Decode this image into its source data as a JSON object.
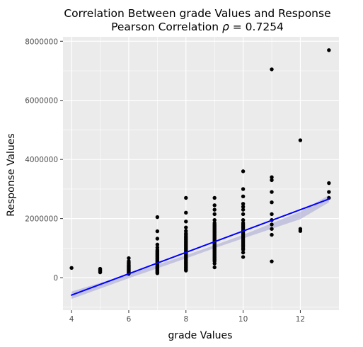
{
  "chart_data": {
    "type": "scatter",
    "title": "Correlation Between grade Values and Response",
    "subtitle_prefix": "Pearson Correlation ",
    "subtitle_symbol": "ρ",
    "subtitle_suffix": " = 0.7254",
    "xlabel": "grade Values",
    "ylabel": "Response Values",
    "xlim": [
      3.7,
      13.35
    ],
    "ylim": [
      -1100000,
      8150000
    ],
    "x_ticks": [
      4,
      6,
      8,
      10,
      12
    ],
    "x_tick_labels": [
      "4",
      "6",
      "8",
      "10",
      "12"
    ],
    "y_ticks": [
      0,
      2000000,
      4000000,
      6000000,
      8000000
    ],
    "y_tick_labels": [
      "0",
      "2000000",
      "4000000",
      "6000000",
      "8000000"
    ],
    "grid": true,
    "colors": {
      "panel_bg": "#ebebeb",
      "grid": "#ffffff",
      "points": "#000000",
      "fit_line": "#0000ff",
      "ci_band": "#b3b3d9"
    },
    "series": [
      {
        "values": [
          {
            "x": 4,
            "y": 330000
          },
          {
            "x": 5,
            "y": 180000
          },
          {
            "x": 5,
            "y": 210000
          },
          {
            "x": 5,
            "y": 240000
          },
          {
            "x": 5,
            "y": 270000
          },
          {
            "x": 5,
            "y": 300000
          },
          {
            "x": 6,
            "y": 130000
          },
          {
            "x": 6,
            "y": 150000
          },
          {
            "x": 6,
            "y": 170000
          },
          {
            "x": 6,
            "y": 190000
          },
          {
            "x": 6,
            "y": 210000
          },
          {
            "x": 6,
            "y": 230000
          },
          {
            "x": 6,
            "y": 250000
          },
          {
            "x": 6,
            "y": 270000
          },
          {
            "x": 6,
            "y": 290000
          },
          {
            "x": 6,
            "y": 310000
          },
          {
            "x": 6,
            "y": 330000
          },
          {
            "x": 6,
            "y": 350000
          },
          {
            "x": 6,
            "y": 370000
          },
          {
            "x": 6,
            "y": 390000
          },
          {
            "x": 6,
            "y": 410000
          },
          {
            "x": 6,
            "y": 430000
          },
          {
            "x": 6,
            "y": 460000
          },
          {
            "x": 6,
            "y": 490000
          },
          {
            "x": 6,
            "y": 520000
          },
          {
            "x": 6,
            "y": 560000
          },
          {
            "x": 6,
            "y": 660000
          },
          {
            "x": 7,
            "y": 150000
          },
          {
            "x": 7,
            "y": 180000
          },
          {
            "x": 7,
            "y": 210000
          },
          {
            "x": 7,
            "y": 240000
          },
          {
            "x": 7,
            "y": 270000
          },
          {
            "x": 7,
            "y": 300000
          },
          {
            "x": 7,
            "y": 330000
          },
          {
            "x": 7,
            "y": 360000
          },
          {
            "x": 7,
            "y": 390000
          },
          {
            "x": 7,
            "y": 420000
          },
          {
            "x": 7,
            "y": 450000
          },
          {
            "x": 7,
            "y": 480000
          },
          {
            "x": 7,
            "y": 510000
          },
          {
            "x": 7,
            "y": 540000
          },
          {
            "x": 7,
            "y": 570000
          },
          {
            "x": 7,
            "y": 600000
          },
          {
            "x": 7,
            "y": 630000
          },
          {
            "x": 7,
            "y": 660000
          },
          {
            "x": 7,
            "y": 690000
          },
          {
            "x": 7,
            "y": 720000
          },
          {
            "x": 7,
            "y": 750000
          },
          {
            "x": 7,
            "y": 780000
          },
          {
            "x": 7,
            "y": 810000
          },
          {
            "x": 7,
            "y": 840000
          },
          {
            "x": 7,
            "y": 870000
          },
          {
            "x": 7,
            "y": 900000
          },
          {
            "x": 7,
            "y": 940000
          },
          {
            "x": 7,
            "y": 1020000
          },
          {
            "x": 7,
            "y": 1120000
          },
          {
            "x": 7,
            "y": 1320000
          },
          {
            "x": 7,
            "y": 1570000
          },
          {
            "x": 7,
            "y": 2050000
          },
          {
            "x": 8,
            "y": 240000
          },
          {
            "x": 8,
            "y": 280000
          },
          {
            "x": 8,
            "y": 320000
          },
          {
            "x": 8,
            "y": 360000
          },
          {
            "x": 8,
            "y": 400000
          },
          {
            "x": 8,
            "y": 440000
          },
          {
            "x": 8,
            "y": 480000
          },
          {
            "x": 8,
            "y": 520000
          },
          {
            "x": 8,
            "y": 560000
          },
          {
            "x": 8,
            "y": 600000
          },
          {
            "x": 8,
            "y": 640000
          },
          {
            "x": 8,
            "y": 680000
          },
          {
            "x": 8,
            "y": 720000
          },
          {
            "x": 8,
            "y": 760000
          },
          {
            "x": 8,
            "y": 800000
          },
          {
            "x": 8,
            "y": 840000
          },
          {
            "x": 8,
            "y": 880000
          },
          {
            "x": 8,
            "y": 920000
          },
          {
            "x": 8,
            "y": 960000
          },
          {
            "x": 8,
            "y": 1000000
          },
          {
            "x": 8,
            "y": 1040000
          },
          {
            "x": 8,
            "y": 1080000
          },
          {
            "x": 8,
            "y": 1120000
          },
          {
            "x": 8,
            "y": 1160000
          },
          {
            "x": 8,
            "y": 1200000
          },
          {
            "x": 8,
            "y": 1240000
          },
          {
            "x": 8,
            "y": 1280000
          },
          {
            "x": 8,
            "y": 1320000
          },
          {
            "x": 8,
            "y": 1360000
          },
          {
            "x": 8,
            "y": 1400000
          },
          {
            "x": 8,
            "y": 1450000
          },
          {
            "x": 8,
            "y": 1500000
          },
          {
            "x": 8,
            "y": 1580000
          },
          {
            "x": 8,
            "y": 1700000
          },
          {
            "x": 8,
            "y": 1900000
          },
          {
            "x": 8,
            "y": 2200000
          },
          {
            "x": 8,
            "y": 2700000
          },
          {
            "x": 9,
            "y": 350000
          },
          {
            "x": 9,
            "y": 480000
          },
          {
            "x": 9,
            "y": 560000
          },
          {
            "x": 9,
            "y": 600000
          },
          {
            "x": 9,
            "y": 640000
          },
          {
            "x": 9,
            "y": 680000
          },
          {
            "x": 9,
            "y": 720000
          },
          {
            "x": 9,
            "y": 760000
          },
          {
            "x": 9,
            "y": 800000
          },
          {
            "x": 9,
            "y": 840000
          },
          {
            "x": 9,
            "y": 880000
          },
          {
            "x": 9,
            "y": 920000
          },
          {
            "x": 9,
            "y": 960000
          },
          {
            "x": 9,
            "y": 1000000
          },
          {
            "x": 9,
            "y": 1040000
          },
          {
            "x": 9,
            "y": 1080000
          },
          {
            "x": 9,
            "y": 1120000
          },
          {
            "x": 9,
            "y": 1160000
          },
          {
            "x": 9,
            "y": 1200000
          },
          {
            "x": 9,
            "y": 1240000
          },
          {
            "x": 9,
            "y": 1280000
          },
          {
            "x": 9,
            "y": 1320000
          },
          {
            "x": 9,
            "y": 1360000
          },
          {
            "x": 9,
            "y": 1400000
          },
          {
            "x": 9,
            "y": 1440000
          },
          {
            "x": 9,
            "y": 1480000
          },
          {
            "x": 9,
            "y": 1520000
          },
          {
            "x": 9,
            "y": 1560000
          },
          {
            "x": 9,
            "y": 1600000
          },
          {
            "x": 9,
            "y": 1640000
          },
          {
            "x": 9,
            "y": 1680000
          },
          {
            "x": 9,
            "y": 1720000
          },
          {
            "x": 9,
            "y": 1760000
          },
          {
            "x": 9,
            "y": 1800000
          },
          {
            "x": 9,
            "y": 1850000
          },
          {
            "x": 9,
            "y": 1950000
          },
          {
            "x": 9,
            "y": 2150000
          },
          {
            "x": 9,
            "y": 2300000
          },
          {
            "x": 9,
            "y": 2450000
          },
          {
            "x": 9,
            "y": 2700000
          },
          {
            "x": 10,
            "y": 700000
          },
          {
            "x": 10,
            "y": 850000
          },
          {
            "x": 10,
            "y": 950000
          },
          {
            "x": 10,
            "y": 1000000
          },
          {
            "x": 10,
            "y": 1050000
          },
          {
            "x": 10,
            "y": 1100000
          },
          {
            "x": 10,
            "y": 1150000
          },
          {
            "x": 10,
            "y": 1200000
          },
          {
            "x": 10,
            "y": 1250000
          },
          {
            "x": 10,
            "y": 1300000
          },
          {
            "x": 10,
            "y": 1350000
          },
          {
            "x": 10,
            "y": 1400000
          },
          {
            "x": 10,
            "y": 1450000
          },
          {
            "x": 10,
            "y": 1500000
          },
          {
            "x": 10,
            "y": 1550000
          },
          {
            "x": 10,
            "y": 1600000
          },
          {
            "x": 10,
            "y": 1650000
          },
          {
            "x": 10,
            "y": 1700000
          },
          {
            "x": 10,
            "y": 1750000
          },
          {
            "x": 10,
            "y": 1800000
          },
          {
            "x": 10,
            "y": 1850000
          },
          {
            "x": 10,
            "y": 1950000
          },
          {
            "x": 10,
            "y": 2150000
          },
          {
            "x": 10,
            "y": 2300000
          },
          {
            "x": 10,
            "y": 2400000
          },
          {
            "x": 10,
            "y": 2500000
          },
          {
            "x": 10,
            "y": 2750000
          },
          {
            "x": 10,
            "y": 3000000
          },
          {
            "x": 10,
            "y": 3600000
          },
          {
            "x": 11,
            "y": 550000
          },
          {
            "x": 11,
            "y": 1450000
          },
          {
            "x": 11,
            "y": 1650000
          },
          {
            "x": 11,
            "y": 1800000
          },
          {
            "x": 11,
            "y": 1950000
          },
          {
            "x": 11,
            "y": 2150000
          },
          {
            "x": 11,
            "y": 2550000
          },
          {
            "x": 11,
            "y": 2900000
          },
          {
            "x": 11,
            "y": 3300000
          },
          {
            "x": 11,
            "y": 3400000
          },
          {
            "x": 11,
            "y": 7050000
          },
          {
            "x": 12,
            "y": 1580000
          },
          {
            "x": 12,
            "y": 1650000
          },
          {
            "x": 12,
            "y": 4650000
          },
          {
            "x": 13,
            "y": 2700000
          },
          {
            "x": 13,
            "y": 2900000
          },
          {
            "x": 13,
            "y": 3200000
          },
          {
            "x": 13,
            "y": 7700000
          }
        ]
      }
    ],
    "fit_line": {
      "x": [
        4,
        13
      ],
      "y": [
        -590000,
        2660000
      ]
    },
    "ci_band": {
      "x": [
        4,
        6,
        8,
        9,
        10,
        12,
        13
      ],
      "lower": [
        -720000,
        -20000,
        650000,
        1000000,
        1330000,
        1980000,
        2550000
      ],
      "upper": [
        -470000,
        120000,
        760000,
        1100000,
        1450000,
        2230000,
        2790000
      ]
    }
  }
}
